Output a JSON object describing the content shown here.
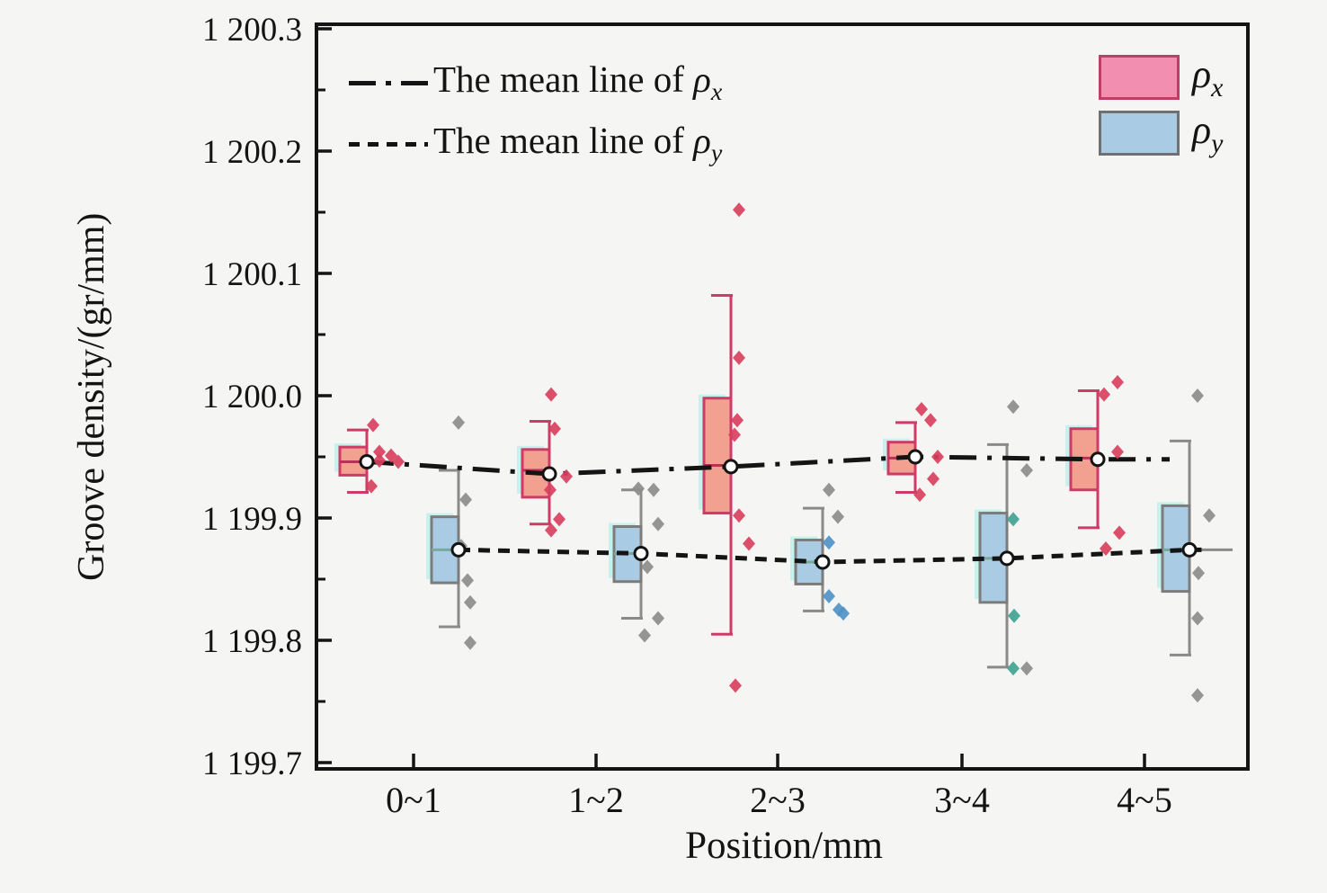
{
  "chart_data": {
    "type": "box",
    "title": "",
    "xlabel": "Position/mm",
    "ylabel": "Groove density/(gr/mm)",
    "categories": [
      "0~1",
      "1~2",
      "2~3",
      "3~4",
      "4~5"
    ],
    "y_axis": {
      "min": 1199.7,
      "max": 1200.3,
      "ticks": [
        {
          "value": 1199.7,
          "label": "1 199.7"
        },
        {
          "value": 1199.8,
          "label": "1 199.8"
        },
        {
          "value": 1199.9,
          "label": "1 199.9"
        },
        {
          "value": 1200.0,
          "label": "1 200.0"
        },
        {
          "value": 1200.1,
          "label": "1 200.1"
        },
        {
          "value": 1200.2,
          "label": "1 200.2"
        },
        {
          "value": 1200.3,
          "label": "1 200.3"
        }
      ],
      "minor_ticks": [
        1199.75,
        1199.85,
        1199.95,
        1200.05,
        1200.15,
        1200.25
      ]
    },
    "colors": {
      "frame": "#141414",
      "shadow": "rgba(140,240,228,0.45)",
      "points": {
        "r": "#d8405f",
        "g": "#8c8c8c",
        "b": "#4f93c7",
        "t": "#41a392"
      }
    },
    "mean_legend": [
      {
        "label": "The mean line of ",
        "symbol": "ρ",
        "sub": "x",
        "pattern": "dashdot"
      },
      {
        "label": "The mean line of ",
        "symbol": "ρ",
        "sub": "y",
        "pattern": "dashed"
      }
    ],
    "box_legend": [
      {
        "symbol": "ρ",
        "sub": "x",
        "fill": "#f28fb1",
        "edge": "#bc3f68"
      },
      {
        "symbol": "ρ",
        "sub": "y",
        "fill": "#a9cbe4",
        "edge": "#707070"
      }
    ],
    "series": [
      {
        "name": "rho_x",
        "point_default": "r",
        "box_fill": "#f2a191",
        "box_edge": "#cd3b66",
        "whisker_color": "#cd3b66",
        "median_color": "#b93058",
        "mean_line_pattern": "dashdot",
        "groups": [
          {
            "whisker_high": 1199.972,
            "q3": 1199.958,
            "median": 1199.946,
            "mean": 1199.946,
            "q1": 1199.935,
            "whisker_low": 1199.921,
            "points": [
              [
                -45,
                1199.976
              ],
              [
                -38,
                1199.954
              ],
              [
                -25,
                1199.951
              ],
              [
                -17,
                1199.946
              ],
              [
                -38,
                1199.947
              ],
              [
                -47,
                1199.926
              ]
            ]
          },
          {
            "whisker_high": 1199.979,
            "q3": 1199.956,
            "median": 1199.939,
            "mean": 1199.936,
            "q1": 1199.917,
            "whisker_low": 1199.895,
            "points": [
              [
                -50,
                1200.001
              ],
              [
                -46,
                1199.973
              ],
              [
                -33,
                1199.934
              ],
              [
                -51,
                1199.923
              ],
              [
                -41,
                1199.899
              ],
              [
                -50,
                1199.89
              ]
            ]
          },
          {
            "whisker_high": 1200.082,
            "q3": 1199.998,
            "median": 1199.943,
            "mean": 1199.942,
            "q1": 1199.904,
            "whisker_low": 1199.805,
            "points": [
              [
                -43,
                1200.152
              ],
              [
                -43,
                1200.031
              ],
              [
                -45,
                1199.98
              ],
              [
                -48,
                1199.968
              ],
              [
                -43,
                1199.902
              ],
              [
                -32,
                1199.879
              ],
              [
                -47,
                1199.763
              ]
            ]
          },
          {
            "whisker_high": 1199.978,
            "q3": 1199.962,
            "median": 1199.949,
            "mean": 1199.95,
            "q1": 1199.936,
            "whisker_low": 1199.921,
            "points": [
              [
                -45,
                1199.989
              ],
              [
                -35,
                1199.98
              ],
              [
                -27,
                1199.95
              ],
              [
                -32,
                1199.932
              ],
              [
                -47,
                1199.919
              ]
            ]
          },
          {
            "whisker_high": 1200.004,
            "q3": 1199.973,
            "median": 1199.949,
            "mean": 1199.948,
            "q1": 1199.923,
            "whisker_low": 1199.892,
            "points": [
              [
                -30,
                1200.011
              ],
              [
                -45,
                1200.001
              ],
              [
                -30,
                1199.954
              ],
              [
                -28,
                1199.888
              ],
              [
                -43,
                1199.875
              ]
            ]
          }
        ]
      },
      {
        "name": "rho_y",
        "point_default": "g",
        "box_fill": "#a9cbe4",
        "box_edge": "#7c7c7c",
        "whisker_color": "#8a8a8a",
        "median_color": "#79a89d",
        "mean_line_pattern": "dashed",
        "groups": [
          {
            "whisker_high": 1199.939,
            "q3": 1199.901,
            "median": 1199.874,
            "mean": 1199.874,
            "q1": 1199.847,
            "whisker_low": 1199.811,
            "points": [
              [
                50,
                1199.978
              ],
              [
                58,
                1199.915
              ],
              [
                53,
                1199.877
              ],
              [
                60,
                1199.849
              ],
              [
                63,
                1199.831
              ],
              [
                63,
                1199.798
              ]
            ]
          },
          {
            "whisker_high": 1199.923,
            "q3": 1199.893,
            "median": 1199.871,
            "mean": 1199.871,
            "q1": 1199.848,
            "whisker_low": 1199.818,
            "points": [
              [
                47,
                1199.924
              ],
              [
                64,
                1199.923
              ],
              [
                69,
                1199.895
              ],
              [
                57,
                1199.86
              ],
              [
                69,
                1199.818
              ],
              [
                54,
                1199.804
              ]
            ]
          },
          {
            "whisker_high": 1199.908,
            "q3": 1199.882,
            "median": 1199.864,
            "mean": 1199.864,
            "q1": 1199.846,
            "whisker_low": 1199.824,
            "points": [
              [
                57,
                1199.923
              ],
              [
                67,
                1199.901
              ],
              [
                57,
                1199.88,
                "b"
              ],
              [
                57,
                1199.836,
                "b"
              ],
              [
                68,
                1199.825,
                "b"
              ],
              [
                73,
                1199.822,
                "b"
              ]
            ]
          },
          {
            "whisker_high": 1199.96,
            "q3": 1199.904,
            "median": 1199.867,
            "mean": 1199.867,
            "q1": 1199.831,
            "whisker_low": 1199.778,
            "points": [
              [
                57,
                1199.991
              ],
              [
                72,
                1199.939
              ],
              [
                57,
                1199.899,
                "t"
              ],
              [
                58,
                1199.82,
                "t"
              ],
              [
                57,
                1199.777,
                "t"
              ],
              [
                72,
                1199.777
              ]
            ]
          },
          {
            "whisker_high": 1199.963,
            "q3": 1199.91,
            "median": 1199.874,
            "mean": 1199.874,
            "q1": 1199.84,
            "whisker_low": 1199.788,
            "mean_ext": true,
            "points": [
              [
                59,
                1200.0
              ],
              [
                72,
                1199.902
              ],
              [
                60,
                1199.855
              ],
              [
                59,
                1199.818
              ],
              [
                59,
                1199.755
              ]
            ]
          }
        ]
      }
    ]
  }
}
